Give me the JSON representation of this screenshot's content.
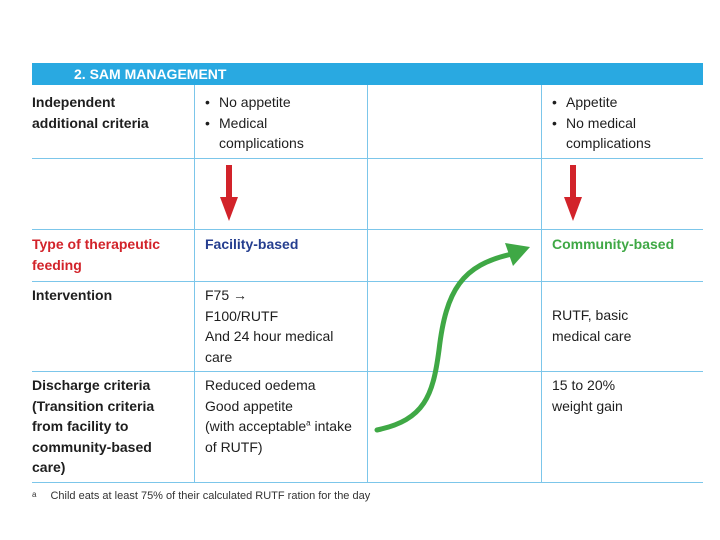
{
  "header": {
    "title": "2. SAM MANAGEMENT"
  },
  "rows": {
    "criteria": {
      "label": "Independent additional criteria",
      "facility_bullets": [
        "No appetite",
        "Medical complications"
      ],
      "community_bullets": [
        "Appetite",
        "No medical complications"
      ]
    },
    "feeding": {
      "label": "Type of therapeutic feeding",
      "facility": "Facility-based",
      "community": "Community-based"
    },
    "intervention": {
      "label": "Intervention",
      "facility_lines": [
        "F75 →",
        "F100/RUTF",
        "And 24 hour medical care"
      ],
      "community": "RUTF, basic medical care"
    },
    "discharge": {
      "label": "Discharge criteria (Transition criteria from facility to community-based care)",
      "facility_line1": "Reduced oedema",
      "facility_line2": "Good appetite",
      "facility_line3_pre": "(with acceptable",
      "facility_line3_sup": "a",
      "facility_line3_post": " intake",
      "facility_line4": "of RUTF)",
      "community": "15 to 20% weight gain"
    }
  },
  "footnote": {
    "marker": "a",
    "text": "Child eats at least 75% of their calculated RUTF ration for the day"
  },
  "colors": {
    "header": "#29a9e1",
    "grid": "#7cc6ea",
    "red": "#d2232a",
    "blue": "#253e8f",
    "green": "#3fa845"
  },
  "icons": {
    "down_arrow": "red-down-arrow-icon",
    "transition_arrow": "green-curved-arrow-icon"
  }
}
